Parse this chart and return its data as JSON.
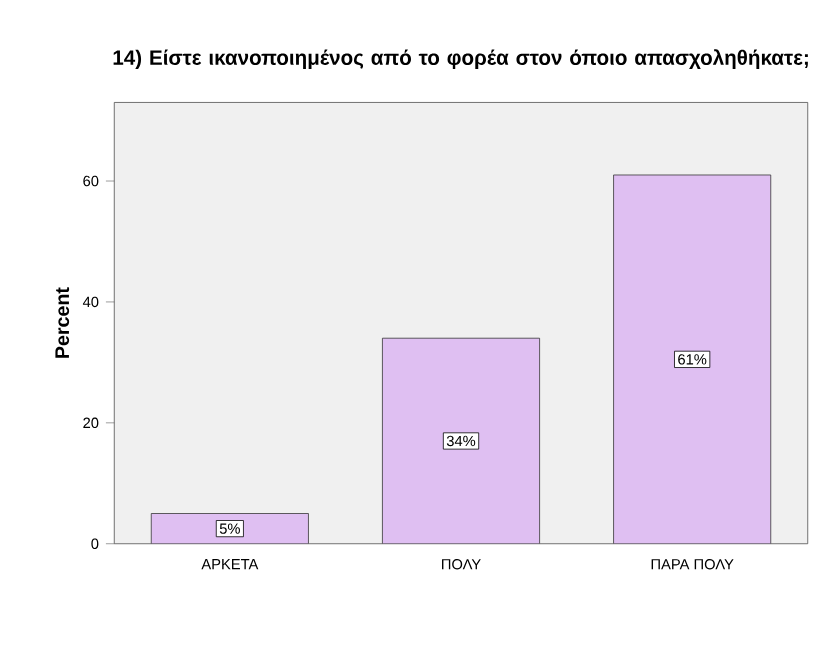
{
  "chart_data": {
    "type": "bar",
    "title": "14) Είστε ικανοποιημένος από το φορέα στον όποιο απασχοληθήκατε;",
    "ylabel": "Percent",
    "categories": [
      "ΑΡΚΕΤΑ",
      "ΠΟΛΥ",
      "ΠΑΡΑ ΠΟΛΥ"
    ],
    "values": [
      5,
      34,
      61
    ],
    "value_labels": [
      "5%",
      "34%",
      "61%"
    ],
    "color": "#dfbff2",
    "ylim": [
      0,
      73
    ],
    "yticks": [
      0,
      20,
      40,
      60
    ],
    "grid": false
  }
}
